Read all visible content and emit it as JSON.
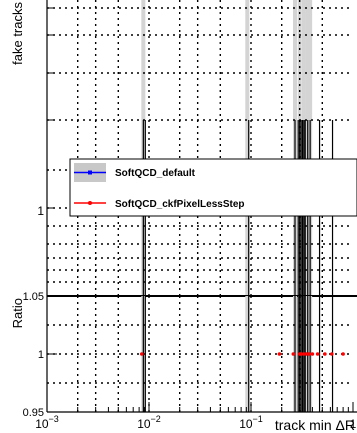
{
  "chart_data": [
    {
      "type": "scatter",
      "panel": "top",
      "ylabel": "fake tracks",
      "yscale": "log",
      "y_tick_labels": [
        "1"
      ],
      "legend": {
        "placement": "middle-left",
        "entries": [
          {
            "name": "SoftQCD_default",
            "color": "#0000ff"
          },
          {
            "name": "SoftQCD_ckfPixelLessStep",
            "color": "#ff0000"
          }
        ]
      },
      "grid": true
    },
    {
      "type": "scatter",
      "panel": "ratio",
      "ylabel": "Ratio",
      "xlabel": "track min ΔR",
      "xscale": "log",
      "xlim": [
        0.001,
        1
      ],
      "ylim": [
        0.95,
        1.05
      ],
      "x_tick_labels": [
        {
          "value": 0.001,
          "base": "10",
          "exp": "−3"
        },
        {
          "value": 0.01,
          "base": "10",
          "exp": "−2"
        },
        {
          "value": 0.1,
          "base": "10",
          "exp": "−1"
        },
        {
          "value": 1,
          "base": "1",
          "exp": ""
        }
      ],
      "y_tick_labels": [
        {
          "value": 1.05,
          "text": "1.05"
        },
        {
          "value": 1,
          "text": "1"
        },
        {
          "value": 0.95,
          "text": "0.95"
        }
      ],
      "series": [
        {
          "name": "SoftQCD_ckfPixelLessStep",
          "color": "#ff0000",
          "points": [
            {
              "x": 0.0085,
              "y": 1.0
            },
            {
              "x": 0.19,
              "y": 1.0
            },
            {
              "x": 0.26,
              "y": 1.0
            },
            {
              "x": 0.3,
              "y": 1.0
            },
            {
              "x": 0.31,
              "y": 1.0
            },
            {
              "x": 0.33,
              "y": 1.0
            },
            {
              "x": 0.35,
              "y": 1.0
            },
            {
              "x": 0.37,
              "y": 1.0
            },
            {
              "x": 0.4,
              "y": 1.0
            },
            {
              "x": 0.45,
              "y": 1.0
            },
            {
              "x": 0.53,
              "y": 1.0
            },
            {
              "x": 0.62,
              "y": 1.0
            },
            {
              "x": 0.8,
              "y": 1.0
            }
          ]
        }
      ],
      "bands_x": [
        0.0088,
        0.092,
        0.27,
        0.3,
        0.33,
        0.36,
        0.38
      ],
      "grid": true
    }
  ]
}
